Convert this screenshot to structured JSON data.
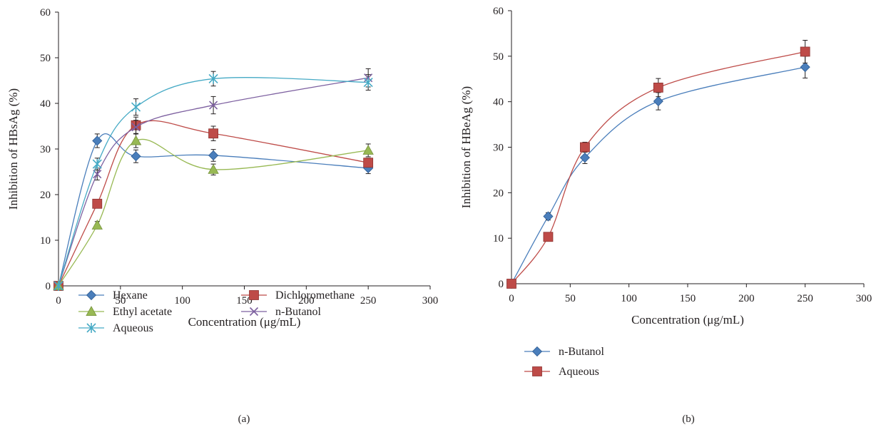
{
  "chart_data": [
    {
      "type": "line",
      "panel_label": "(a)",
      "xlabel": "Concentration (μg/mL)",
      "ylabel": "Inhibition of HBsAg (%)",
      "xlim": [
        0,
        300
      ],
      "ylim": [
        0,
        60
      ],
      "xticks": [
        "0",
        "50",
        "100",
        "150",
        "200",
        "250",
        "300"
      ],
      "yticks": [
        "0",
        "10",
        "20",
        "30",
        "40",
        "50",
        "60"
      ],
      "grid": false,
      "smooth": true,
      "legend_position": "bottom",
      "x": [
        0,
        31.25,
        62.5,
        125,
        250
      ],
      "series": [
        {
          "name": "Hexane",
          "color": "#4a7ebb",
          "marker": "diamond",
          "values": [
            0,
            31.8,
            28.4,
            28.6,
            25.8
          ],
          "errors": [
            0,
            1.5,
            1.4,
            1.3,
            1.2
          ]
        },
        {
          "name": "Dichloromethane",
          "color": "#be4b48",
          "marker": "square",
          "values": [
            0,
            18.0,
            35.2,
            33.4,
            27.0
          ],
          "errors": [
            0,
            0,
            1.8,
            1.6,
            1.0
          ]
        },
        {
          "name": "Ethyl acetate",
          "color": "#98b954",
          "marker": "triangle",
          "values": [
            0,
            13.3,
            31.8,
            25.5,
            29.7
          ],
          "errors": [
            0,
            0.8,
            1.5,
            1.2,
            1.4
          ]
        },
        {
          "name": "n-Butanol",
          "color": "#7d60a0",
          "marker": "x",
          "values": [
            0,
            24.5,
            34.8,
            39.6,
            45.6
          ],
          "errors": [
            0,
            1.3,
            1.5,
            1.9,
            2.0
          ]
        },
        {
          "name": "Aqueous",
          "color": "#46aac5",
          "marker": "star",
          "values": [
            0,
            26.7,
            39.2,
            45.4,
            44.6
          ],
          "errors": [
            0,
            1.3,
            1.8,
            1.6,
            1.7
          ]
        }
      ]
    },
    {
      "type": "line",
      "panel_label": "(b)",
      "xlabel": "Concentration (μg/mL)",
      "ylabel": "Inhibition of HBeAg (%)",
      "xlim": [
        0,
        300
      ],
      "ylim": [
        0,
        60
      ],
      "xticks": [
        "0",
        "50",
        "100",
        "150",
        "200",
        "250",
        "300"
      ],
      "yticks": [
        "0",
        "10",
        "20",
        "30",
        "40",
        "50",
        "60"
      ],
      "grid": false,
      "smooth": true,
      "legend_position": "bottom-left",
      "x": [
        0,
        31.25,
        62.5,
        125,
        250
      ],
      "series": [
        {
          "name": "n-Butanol",
          "color": "#4a7ebb",
          "marker": "diamond",
          "values": [
            0,
            14.8,
            27.7,
            40.1,
            47.6
          ],
          "errors": [
            0,
            0.8,
            1.3,
            1.9,
            2.4
          ]
        },
        {
          "name": "Aqueous",
          "color": "#be4b48",
          "marker": "square",
          "values": [
            0,
            10.3,
            30.0,
            43.1,
            51.0
          ],
          "errors": [
            0,
            0,
            1.1,
            2.0,
            2.5
          ]
        }
      ]
    }
  ]
}
